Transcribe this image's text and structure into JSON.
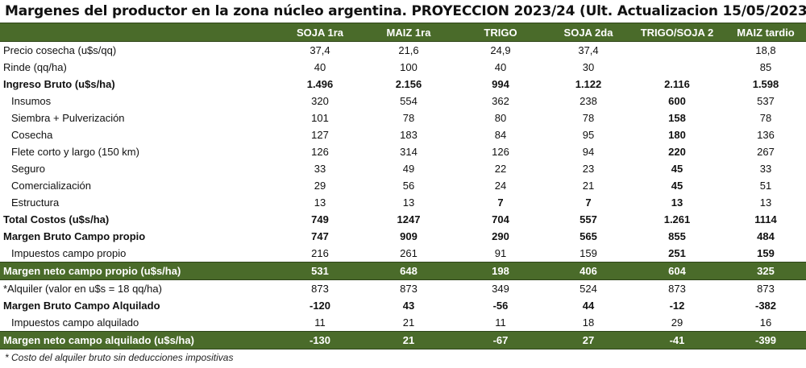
{
  "title": "Margenes del productor en la zona núcleo argentina. PROYECCION 2023/24 (Ult. Actualizacion 15/05/2023)",
  "colors": {
    "header_bg": "#4a6b2a",
    "header_text": "#ffffff"
  },
  "table": {
    "headers": [
      "",
      "SOJA 1ra",
      "MAIZ 1ra",
      "TRIGO",
      "SOJA 2da",
      "TRIGO/SOJA 2",
      "MAIZ tardio"
    ],
    "rows": [
      {
        "label": "Precio cosecha (u$s/qq)",
        "values": [
          "37,4",
          "21,6",
          "24,9",
          "37,4",
          "",
          "18,8"
        ]
      },
      {
        "label": "Rinde (qq/ha)",
        "values": [
          "40",
          "100",
          "40",
          "30",
          "",
          "85"
        ]
      },
      {
        "label": "Ingreso Bruto (u$s/ha)",
        "values": [
          "1.496",
          "2.156",
          "994",
          "1.122",
          "2.116",
          "1.598"
        ]
      },
      {
        "label": "Insumos",
        "values": [
          "320",
          "554",
          "362",
          "238",
          "600",
          "537"
        ]
      },
      {
        "label": "Siembra + Pulverización",
        "values": [
          "101",
          "78",
          "80",
          "78",
          "158",
          "78"
        ]
      },
      {
        "label": "Cosecha",
        "values": [
          "127",
          "183",
          "84",
          "95",
          "180",
          "136"
        ]
      },
      {
        "label": "Flete corto y largo (150 km)",
        "values": [
          "126",
          "314",
          "126",
          "94",
          "220",
          "267"
        ]
      },
      {
        "label": "Seguro",
        "values": [
          "33",
          "49",
          "22",
          "23",
          "45",
          "33"
        ]
      },
      {
        "label": "Comercialización",
        "values": [
          "29",
          "56",
          "24",
          "21",
          "45",
          "51"
        ]
      },
      {
        "label": "Estructura",
        "values": [
          "13",
          "13",
          "7",
          "7",
          "13",
          "13"
        ]
      },
      {
        "label": "Total Costos (u$s/ha)",
        "values": [
          "749",
          "1247",
          "704",
          "557",
          "1.261",
          "1114"
        ]
      },
      {
        "label": "Margen Bruto Campo propio",
        "values": [
          "747",
          "909",
          "290",
          "565",
          "855",
          "484"
        ]
      },
      {
        "label": "Impuestos  campo propio",
        "values": [
          "216",
          "261",
          "91",
          "159",
          "251",
          "159"
        ]
      },
      {
        "label": "Margen neto campo propio (u$s/ha)",
        "values": [
          "531",
          "648",
          "198",
          "406",
          "604",
          "325"
        ]
      },
      {
        "label": "*Alquiler (valor en u$s = 18 qq/ha)",
        "values": [
          "873",
          "873",
          "349",
          "524",
          "873",
          "873"
        ]
      },
      {
        "label": "Margen Bruto Campo Alquilado",
        "values": [
          "-120",
          "43",
          "-56",
          "44",
          "-12",
          "-382"
        ]
      },
      {
        "label": "Impuestos campo alquilado",
        "values": [
          "11",
          "21",
          "11",
          "18",
          "29",
          "16"
        ]
      },
      {
        "label": "Margen neto campo alquilado (u$s/ha)",
        "values": [
          "-130",
          "21",
          "-67",
          "27",
          "-41",
          "-399"
        ]
      }
    ]
  },
  "footnote": "* Costo del alquiler bruto sin deducciones impositivas"
}
